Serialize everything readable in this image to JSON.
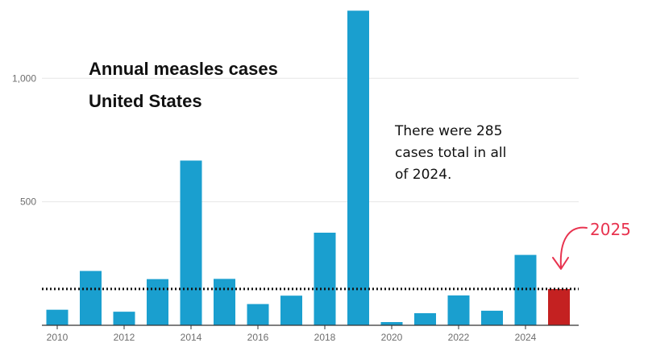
{
  "chart_data": {
    "type": "bar",
    "title": "Annual measles cases",
    "subtitle": "United States",
    "x": [
      2010,
      2011,
      2012,
      2013,
      2014,
      2015,
      2016,
      2017,
      2018,
      2019,
      2020,
      2021,
      2022,
      2023,
      2024,
      2025
    ],
    "values": [
      63,
      220,
      55,
      187,
      667,
      188,
      86,
      120,
      375,
      1274,
      13,
      49,
      121,
      59,
      285,
      147
    ],
    "x_tick_labels": [
      "2010",
      "2012",
      "2014",
      "2016",
      "2018",
      "2020",
      "2022",
      "2024"
    ],
    "y_ticks": [
      {
        "value": 500,
        "label": "500"
      },
      {
        "value": 1000,
        "label": "1,000"
      }
    ],
    "ylim": [
      0,
      1290
    ],
    "grid": true,
    "reference_line": {
      "value": 147,
      "style": "dotted"
    },
    "annotations": {
      "note_lines": [
        "There were 285",
        "cases total in all",
        "of 2024."
      ],
      "highlight_label": "2025"
    },
    "colors": {
      "bar": "#1a9fcf",
      "highlight": "#c42121",
      "callout": "#e8334f",
      "grid": "#e6e6e6",
      "reference": "#111111"
    }
  }
}
